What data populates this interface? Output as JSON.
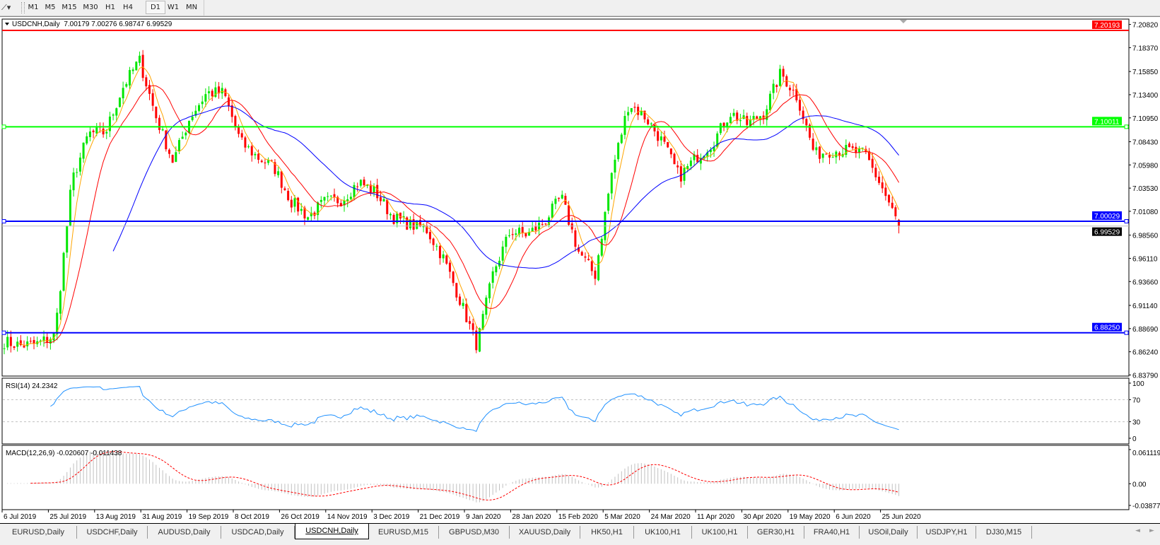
{
  "toolbar": {
    "drawing_tool_icon": "line-tool-icon",
    "timeframes": [
      "M1",
      "M5",
      "M15",
      "M30",
      "H1",
      "H4",
      "D1",
      "W1",
      "MN"
    ],
    "active_timeframe": "D1"
  },
  "chart": {
    "info_label": "USDCNH,Daily  7.00179 7.00276 6.98747 6.99529",
    "rsi_label": "RSI(14) 24.2342",
    "macd_label": "MACD(12,26,9) -0.020607 -0.011438",
    "colors": {
      "bull": "#00e600",
      "bear": "#ff0000",
      "ma_fast": "#ffa500",
      "ma_mid": "#ff0000",
      "ma_slow": "#0000ff",
      "rsi": "#1e90ff",
      "macd_hist": "#c0c0c0",
      "macd_signal": "#ff0000"
    }
  },
  "chart_data": {
    "type": "candlestick",
    "symbol": "USDCNH",
    "timeframe": "Daily",
    "last_bar": {
      "open": 7.00179,
      "high": 7.00276,
      "low": 6.98747,
      "close": 6.99529
    },
    "close_weekly_approx": [
      6.873,
      6.869,
      6.871,
      6.88,
      7.042,
      7.093,
      7.094,
      7.141,
      7.171,
      7.11,
      7.063,
      7.11,
      7.136,
      7.136,
      7.084,
      7.068,
      7.057,
      7.021,
      7.005,
      7.021,
      7.023,
      7.042,
      7.031,
      7.005,
      6.997,
      6.992,
      6.962,
      6.917,
      6.869,
      6.948,
      6.99,
      6.986,
      7.0,
      7.026,
      6.969,
      6.943,
      7.052,
      7.125,
      7.11,
      7.084,
      7.047,
      7.068,
      7.084,
      7.115,
      7.103,
      7.115,
      7.157,
      7.131,
      7.071,
      7.075,
      7.075,
      7.071,
      7.036,
      6.99529
    ],
    "price_axis": {
      "min": 6.8379,
      "max": 7.2082,
      "ticks": [
        "7.20820",
        "7.18370",
        "7.15850",
        "7.13400",
        "7.10950",
        "7.08430",
        "7.05980",
        "7.03530",
        "7.01080",
        "6.98560",
        "6.96110",
        "6.93660",
        "6.91140",
        "6.88690",
        "6.86240",
        "6.83790"
      ]
    },
    "horizontal_lines": [
      {
        "price": "7.20193",
        "color": "#ff0000"
      },
      {
        "price": "7.10011",
        "color": "#00ff00"
      },
      {
        "price": "7.00029",
        "color": "#0000ff"
      },
      {
        "price": "6.88250",
        "color": "#0000ff"
      }
    ],
    "current_price": {
      "price": "6.99529",
      "color": "#c0c0c0"
    },
    "rsi_axis": {
      "min": 0,
      "max": 100,
      "ticks": [
        "100",
        "70",
        "30",
        "0"
      ],
      "levels": [
        70,
        30
      ]
    },
    "macd_axis": {
      "min": -0.038777,
      "max": 0.061119,
      "ticks": [
        "0.061119",
        "0.00",
        "-0.038777"
      ]
    },
    "x_tick_labels": [
      "6 Jul 2019",
      "25 Jul 2019",
      "13 Aug 2019",
      "31 Aug 2019",
      "19 Sep 2019",
      "8 Oct 2019",
      "26 Oct 2019",
      "14 Nov 2019",
      "3 Dec 2019",
      "21 Dec 2019",
      "9 Jan 2020",
      "28 Jan 2020",
      "15 Feb 2020",
      "5 Mar 2020",
      "24 Mar 2020",
      "11 Apr 2020",
      "30 Apr 2020",
      "19 May 2020",
      "6 Jun 2020",
      "25 Jun 2020"
    ],
    "moving_averages": [
      "fast",
      "mid",
      "slow"
    ],
    "grid": false
  },
  "tabs": [
    {
      "label": "EURUSD,Daily"
    },
    {
      "label": "USDCHF,Daily"
    },
    {
      "label": "AUDUSD,Daily"
    },
    {
      "label": "USDCAD,Daily"
    },
    {
      "label": "USDCNH,Daily",
      "active": true
    },
    {
      "label": "EURUSD,M15"
    },
    {
      "label": "GBPUSD,M30"
    },
    {
      "label": "XAUUSD,Daily"
    },
    {
      "label": "HK50,H1"
    },
    {
      "label": "UK100,H1"
    },
    {
      "label": "UK100,H1"
    },
    {
      "label": "GER30,H1"
    },
    {
      "label": "FRA40,H1"
    },
    {
      "label": "USOil,Daily"
    },
    {
      "label": "USDJPY,H1"
    },
    {
      "label": "DJ30,M15"
    }
  ],
  "tab_scroll": {
    "left": "◄",
    "right": "►"
  }
}
